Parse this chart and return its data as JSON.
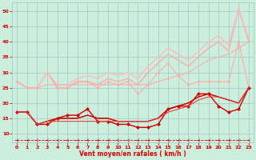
{
  "xlabel": "Vent moyen/en rafales ( km/h )",
  "xlim": [
    -0.5,
    23.5
  ],
  "ylim": [
    7,
    53
  ],
  "yticks": [
    10,
    15,
    20,
    25,
    30,
    35,
    40,
    45,
    50
  ],
  "xticks": [
    0,
    1,
    2,
    3,
    4,
    5,
    6,
    7,
    8,
    9,
    10,
    11,
    12,
    13,
    14,
    15,
    16,
    17,
    18,
    19,
    20,
    21,
    22,
    23
  ],
  "bg_color": "#cceedd",
  "grid_color": "#aacccc",
  "label_color": "#cc0000",
  "tick_color": "#cc0000",
  "series": [
    {
      "x": [
        0,
        1,
        2,
        3,
        4,
        5,
        6,
        7,
        8,
        9,
        10,
        11,
        12,
        13,
        14,
        15,
        16,
        17,
        18,
        19,
        20,
        21,
        22,
        23
      ],
      "y": [
        27,
        25,
        25,
        30,
        25,
        25,
        27,
        27,
        25,
        27,
        26,
        27,
        23,
        26,
        30,
        33,
        29,
        26,
        27,
        27,
        27,
        27,
        40,
        25
      ],
      "color": "#ffaaaa",
      "marker": "D",
      "markersize": 1.5,
      "lw": 0.8,
      "linestyle": "-"
    },
    {
      "x": [
        0,
        1,
        2,
        3,
        4,
        5,
        6,
        7,
        8,
        9,
        10,
        11,
        12,
        13,
        14,
        15,
        16,
        17,
        18,
        19,
        20,
        21,
        22,
        23
      ],
      "y": [
        27,
        25,
        25,
        30,
        25,
        25,
        27,
        27,
        26,
        28,
        27,
        28,
        26,
        30,
        33,
        36,
        34,
        32,
        35,
        38,
        40,
        37,
        51,
        40
      ],
      "color": "#ffaaaa",
      "marker": null,
      "lw": 1.0,
      "linestyle": "-"
    },
    {
      "x": [
        0,
        1,
        2,
        3,
        4,
        5,
        6,
        7,
        8,
        9,
        10,
        11,
        12,
        13,
        14,
        15,
        16,
        17,
        18,
        19,
        20,
        21,
        22,
        23
      ],
      "y": [
        27,
        25,
        25,
        30,
        26,
        26,
        28,
        29,
        28,
        30,
        29,
        30,
        28,
        32,
        35,
        38,
        36,
        34,
        37,
        40,
        42,
        39,
        51,
        41
      ],
      "color": "#ffbbbb",
      "marker": null,
      "lw": 1.0,
      "linestyle": "-"
    },
    {
      "x": [
        0,
        1,
        2,
        3,
        4,
        5,
        6,
        7,
        8,
        9,
        10,
        11,
        12,
        13,
        14,
        15,
        16,
        17,
        18,
        19,
        20,
        21,
        22,
        23
      ],
      "y": [
        27,
        25,
        25,
        26,
        26,
        26,
        26,
        26,
        26,
        26,
        26,
        26,
        26,
        26,
        27,
        28,
        29,
        30,
        32,
        34,
        35,
        36,
        38,
        40
      ],
      "color": "#ffaaaa",
      "marker": null,
      "lw": 0.8,
      "linestyle": "-"
    },
    {
      "x": [
        0,
        1,
        2,
        3,
        4,
        5,
        6,
        7,
        8,
        9,
        10,
        11,
        12,
        13,
        14,
        15,
        16,
        17,
        18,
        19,
        20,
        21,
        22,
        23
      ],
      "y": [
        17,
        17,
        13,
        13,
        15,
        16,
        16,
        18,
        14,
        14,
        13,
        13,
        12,
        12,
        13,
        18,
        19,
        19,
        23,
        23,
        19,
        17,
        18,
        25
      ],
      "color": "#cc0000",
      "marker": "D",
      "markersize": 2.0,
      "lw": 1.0,
      "linestyle": "-"
    },
    {
      "x": [
        0,
        1,
        2,
        3,
        4,
        5,
        6,
        7,
        8,
        9,
        10,
        11,
        12,
        13,
        14,
        15,
        16,
        17,
        18,
        19,
        20,
        21,
        22,
        23
      ],
      "y": [
        17,
        17,
        13,
        14,
        15,
        15,
        15,
        16,
        15,
        15,
        14,
        14,
        14,
        14,
        15,
        18,
        19,
        20,
        22,
        23,
        22,
        21,
        20,
        25
      ],
      "color": "#cc0000",
      "marker": null,
      "lw": 0.9,
      "linestyle": "-"
    },
    {
      "x": [
        0,
        1,
        2,
        3,
        4,
        5,
        6,
        7,
        8,
        9,
        10,
        11,
        12,
        13,
        14,
        15,
        16,
        17,
        18,
        19,
        20,
        21,
        22,
        23
      ],
      "y": [
        17,
        17,
        13,
        14,
        15,
        15,
        15,
        16,
        15,
        15,
        14,
        14,
        14,
        14,
        15,
        18,
        19,
        20,
        22,
        23,
        22,
        21,
        20,
        25
      ],
      "color": "#cc0000",
      "marker": null,
      "lw": 0.8,
      "linestyle": "-"
    },
    {
      "x": [
        0,
        1,
        2,
        3,
        4,
        5,
        6,
        7,
        8,
        9,
        10,
        11,
        12,
        13,
        14,
        15,
        16,
        17,
        18,
        19,
        20,
        21,
        22,
        23
      ],
      "y": [
        17,
        17,
        13,
        14,
        14,
        14,
        14,
        14,
        14,
        14,
        14,
        14,
        14,
        14,
        15,
        17,
        18,
        19,
        21,
        22,
        22,
        21,
        20,
        25
      ],
      "color": "#dd4444",
      "marker": null,
      "lw": 0.8,
      "linestyle": "-"
    },
    {
      "x": [
        0,
        1,
        2,
        3,
        4,
        5,
        6,
        7,
        8,
        9,
        10,
        11,
        12,
        13,
        14,
        15,
        16,
        17,
        18,
        19,
        20,
        21,
        22,
        23
      ],
      "y": [
        8,
        8,
        8,
        8,
        8,
        8,
        8,
        8,
        8,
        8,
        8,
        8,
        8,
        8,
        8,
        8,
        8,
        8,
        8,
        8,
        8,
        8,
        8,
        8
      ],
      "color": "#cc0000",
      "marker": "3",
      "markersize": 4.0,
      "lw": 0.6,
      "linestyle": "--"
    }
  ]
}
